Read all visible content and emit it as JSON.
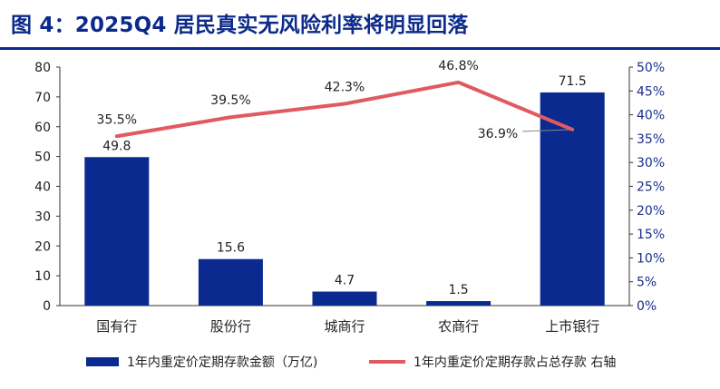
{
  "figure": {
    "title": "图 4：2025Q4 居民真实无风险利率将明显回落"
  },
  "chart_data": {
    "type": "bar",
    "categories": [
      "国有行",
      "股份行",
      "城商行",
      "农商行",
      "上市银行"
    ],
    "series": [
      {
        "name": "1年内重定价定期存款金额（万亿)",
        "type": "bar",
        "axis": "left",
        "values": [
          49.8,
          15.6,
          4.7,
          1.5,
          71.5
        ],
        "labels": [
          "49.8",
          "15.6",
          "4.7",
          "1.5",
          "71.5"
        ],
        "color": "#0a2a8f"
      },
      {
        "name": "1年内重定价定期存款占总存款 右轴",
        "type": "line",
        "axis": "right",
        "values": [
          35.5,
          39.5,
          42.3,
          46.8,
          36.9
        ],
        "labels": [
          "35.5%",
          "39.5%",
          "42.3%",
          "46.8%",
          "36.9%"
        ],
        "color": "#e05a60"
      }
    ],
    "y_left": {
      "min": 0,
      "max": 80,
      "ticks": [
        "0",
        "10",
        "20",
        "30",
        "40",
        "50",
        "60",
        "70",
        "80"
      ]
    },
    "y_right": {
      "min": 0,
      "max": 50,
      "ticks": [
        "0%",
        "5%",
        "10%",
        "15%",
        "20%",
        "25%",
        "30%",
        "35%",
        "40%",
        "45%",
        "50%"
      ]
    },
    "grid": false,
    "legend_position": "bottom"
  }
}
